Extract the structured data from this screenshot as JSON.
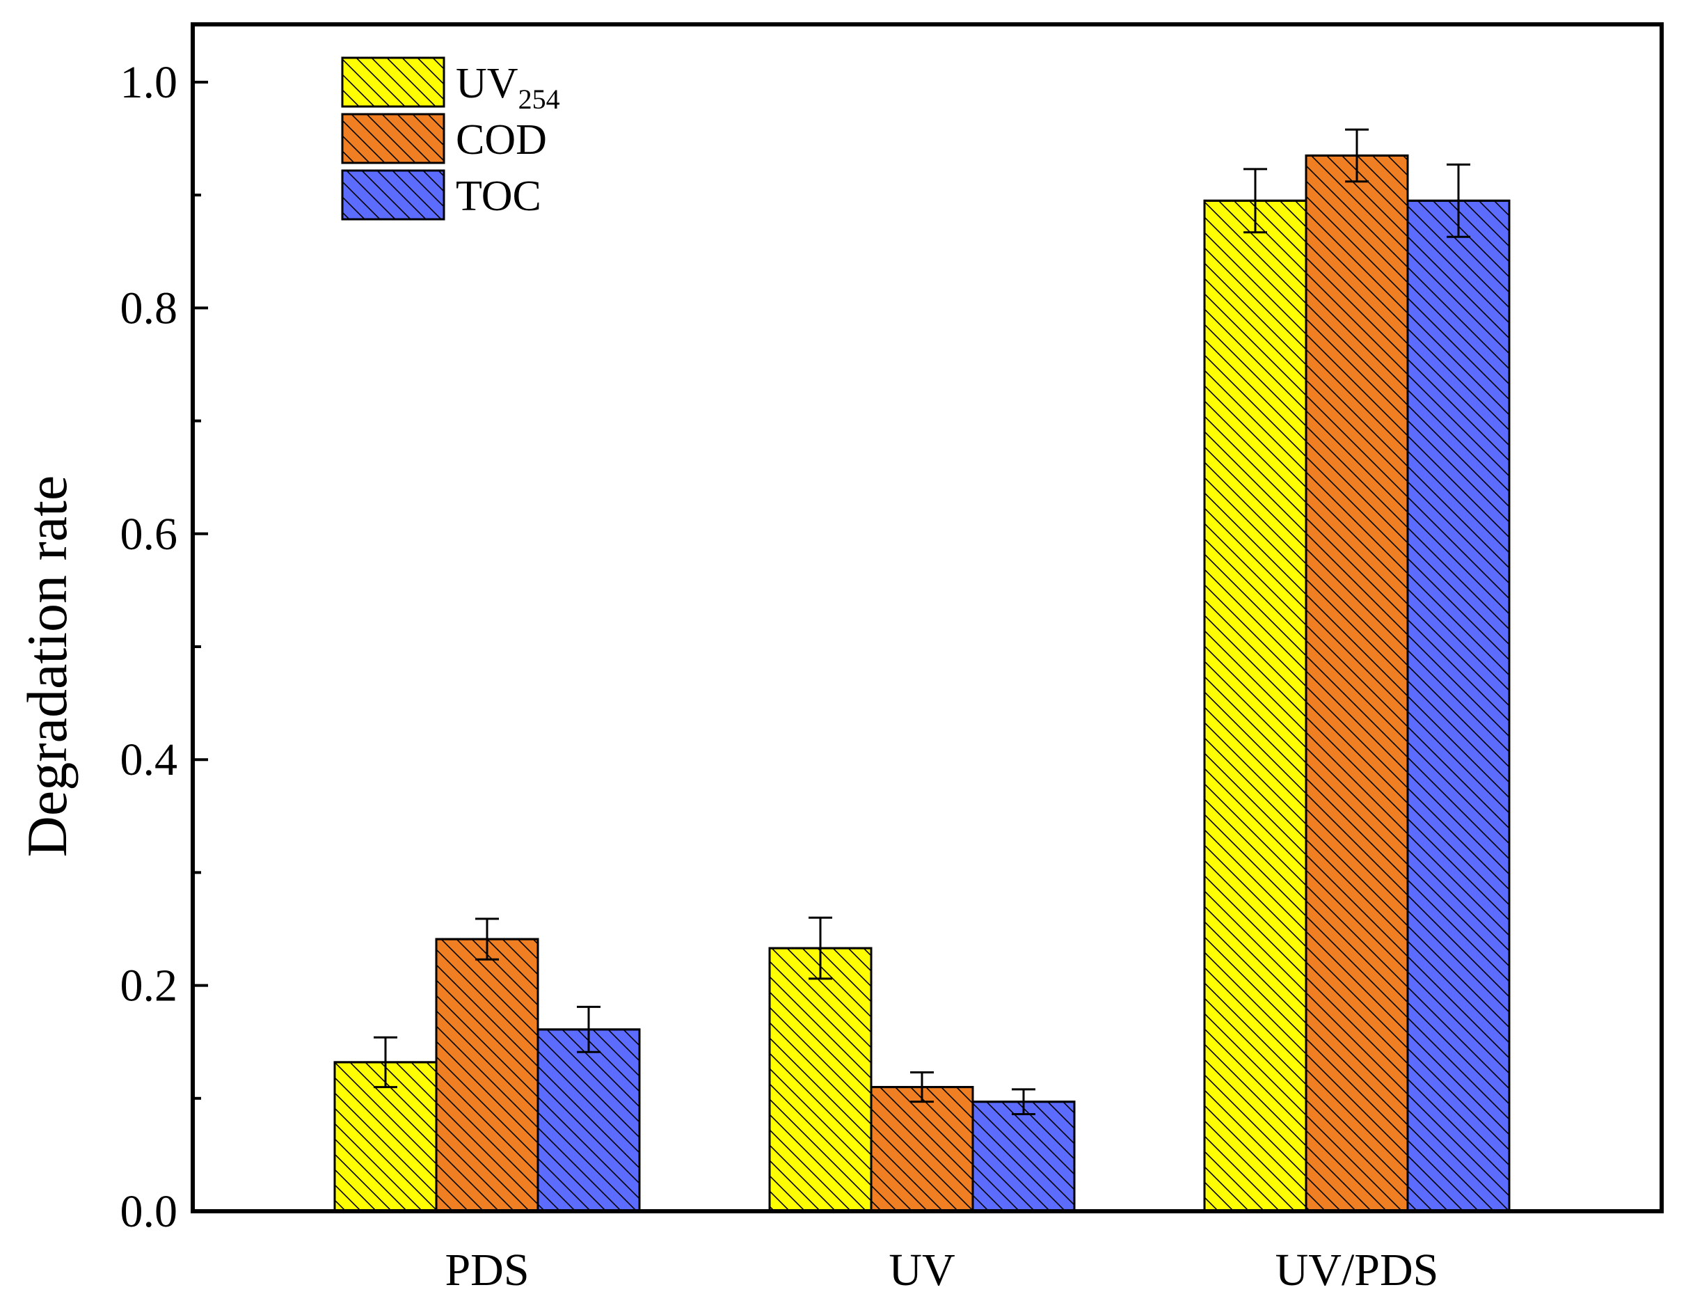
{
  "chart_data": {
    "type": "bar",
    "title": "",
    "xlabel": "",
    "ylabel": "Degradation rate",
    "ylim": [
      0,
      1.0
    ],
    "yticks": [
      "0.0",
      "0.2",
      "0.4",
      "0.6",
      "0.8",
      "1.0"
    ],
    "categories": [
      "PDS",
      "UV",
      "UV/PDS"
    ],
    "series": [
      {
        "name": "UV",
        "subscript": "254",
        "color": "#ffff00",
        "values": [
          0.132,
          0.233,
          0.895
        ],
        "errors": [
          0.022,
          0.027,
          0.028
        ]
      },
      {
        "name": "COD",
        "subscript": "",
        "color": "#ef7f22",
        "values": [
          0.241,
          0.11,
          0.935
        ],
        "errors": [
          0.018,
          0.013,
          0.023
        ]
      },
      {
        "name": "TOC",
        "subscript": "",
        "color": "#5b6cff",
        "values": [
          0.161,
          0.097,
          0.895
        ],
        "errors": [
          0.02,
          0.011,
          0.032
        ]
      }
    ],
    "legend_position": "top-left",
    "hatch": "diagonal"
  }
}
